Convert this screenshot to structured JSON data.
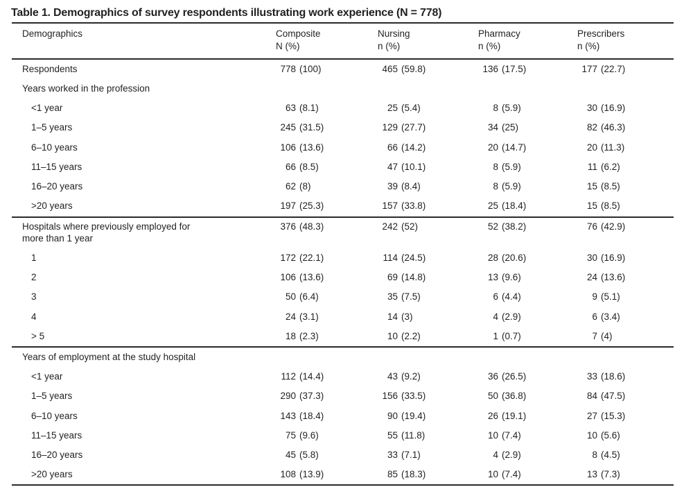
{
  "title": "Table 1. Demographics of survey respondents illustrating work experience (N = 778)",
  "columns": {
    "label": "Demographics",
    "numeric": [
      {
        "name": "Composite",
        "unit": "N (%)"
      },
      {
        "name": "Nursing",
        "unit": "n (%)"
      },
      {
        "name": "Pharmacy",
        "unit": "n (%)"
      },
      {
        "name": "Prescribers",
        "unit": "n (%)"
      }
    ]
  },
  "sections": [
    {
      "rows": [
        {
          "label": "Respondents",
          "indent": false,
          "values": [
            [
              "778",
              "(100)"
            ],
            [
              "465",
              "(59.8)"
            ],
            [
              "136",
              "(17.5)"
            ],
            [
              "177",
              "(22.7)"
            ]
          ]
        },
        {
          "label": "Years worked in the profession",
          "indent": false,
          "values": []
        },
        {
          "label": "<1 year",
          "indent": true,
          "values": [
            [
              "63",
              "(8.1)"
            ],
            [
              "25",
              "(5.4)"
            ],
            [
              "8",
              "(5.9)"
            ],
            [
              "30",
              "(16.9)"
            ]
          ]
        },
        {
          "label": "1–5 years",
          "indent": true,
          "values": [
            [
              "245",
              "(31.5)"
            ],
            [
              "129",
              "(27.7)"
            ],
            [
              "34",
              "(25)"
            ],
            [
              "82",
              "(46.3)"
            ]
          ]
        },
        {
          "label": "6–10 years",
          "indent": true,
          "values": [
            [
              "106",
              "(13.6)"
            ],
            [
              "66",
              "(14.2)"
            ],
            [
              "20",
              "(14.7)"
            ],
            [
              "20",
              "(11.3)"
            ]
          ]
        },
        {
          "label": "11–15 years",
          "indent": true,
          "values": [
            [
              "66",
              "(8.5)"
            ],
            [
              "47",
              "(10.1)"
            ],
            [
              "8",
              "(5.9)"
            ],
            [
              "11",
              "(6.2)"
            ]
          ]
        },
        {
          "label": "16–20 years",
          "indent": true,
          "values": [
            [
              "62",
              "(8)"
            ],
            [
              "39",
              "(8.4)"
            ],
            [
              "8",
              "(5.9)"
            ],
            [
              "15",
              "(8.5)"
            ]
          ]
        },
        {
          "label": ">20 years",
          "indent": true,
          "values": [
            [
              "197",
              "(25.3)"
            ],
            [
              "157",
              "(33.8)"
            ],
            [
              "25",
              "(18.4)"
            ],
            [
              "15",
              "(8.5)"
            ]
          ]
        }
      ]
    },
    {
      "rows": [
        {
          "label": "Hospitals where previously employed for\nmore than 1 year",
          "indent": false,
          "values": [
            [
              "376",
              "(48.3)"
            ],
            [
              "242",
              "(52)"
            ],
            [
              "52",
              "(38.2)"
            ],
            [
              "76",
              "(42.9)"
            ]
          ]
        },
        {
          "label": "1",
          "indent": true,
          "values": [
            [
              "172",
              "(22.1)"
            ],
            [
              "114",
              "(24.5)"
            ],
            [
              "28",
              "(20.6)"
            ],
            [
              "30",
              "(16.9)"
            ]
          ]
        },
        {
          "label": "2",
          "indent": true,
          "values": [
            [
              "106",
              "(13.6)"
            ],
            [
              "69",
              "(14.8)"
            ],
            [
              "13",
              "(9.6)"
            ],
            [
              "24",
              "(13.6)"
            ]
          ]
        },
        {
          "label": "3",
          "indent": true,
          "values": [
            [
              "50",
              "(6.4)"
            ],
            [
              "35",
              "(7.5)"
            ],
            [
              "6",
              "(4.4)"
            ],
            [
              "9",
              "(5.1)"
            ]
          ]
        },
        {
          "label": "4",
          "indent": true,
          "values": [
            [
              "24",
              "(3.1)"
            ],
            [
              "14",
              "(3)"
            ],
            [
              "4",
              "(2.9)"
            ],
            [
              "6",
              "(3.4)"
            ]
          ]
        },
        {
          "label": "> 5",
          "indent": true,
          "values": [
            [
              "18",
              "(2.3)"
            ],
            [
              "10",
              "(2.2)"
            ],
            [
              "1",
              "(0.7)"
            ],
            [
              "7",
              "(4)"
            ]
          ]
        }
      ]
    },
    {
      "rows": [
        {
          "label": "Years of employment at the study hospital",
          "indent": false,
          "values": []
        },
        {
          "label": "<1 year",
          "indent": true,
          "values": [
            [
              "112",
              "(14.4)"
            ],
            [
              "43",
              "(9.2)"
            ],
            [
              "36",
              "(26.5)"
            ],
            [
              "33",
              "(18.6)"
            ]
          ]
        },
        {
          "label": "1–5 years",
          "indent": true,
          "values": [
            [
              "290",
              "(37.3)"
            ],
            [
              "156",
              "(33.5)"
            ],
            [
              "50",
              "(36.8)"
            ],
            [
              "84",
              "(47.5)"
            ]
          ]
        },
        {
          "label": "6–10 years",
          "indent": true,
          "values": [
            [
              "143",
              "(18.4)"
            ],
            [
              "90",
              "(19.4)"
            ],
            [
              "26",
              "(19.1)"
            ],
            [
              "27",
              "(15.3)"
            ]
          ]
        },
        {
          "label": "11–15 years",
          "indent": true,
          "values": [
            [
              "75",
              "(9.6)"
            ],
            [
              "55",
              "(11.8)"
            ],
            [
              "10",
              "(7.4)"
            ],
            [
              "10",
              "(5.6)"
            ]
          ]
        },
        {
          "label": "16–20 years",
          "indent": true,
          "values": [
            [
              "45",
              "(5.8)"
            ],
            [
              "33",
              "(7.1)"
            ],
            [
              "4",
              "(2.9)"
            ],
            [
              "8",
              "(4.5)"
            ]
          ]
        },
        {
          "label": ">20 years",
          "indent": true,
          "values": [
            [
              "108",
              "(13.9)"
            ],
            [
              "85",
              "(18.3)"
            ],
            [
              "10",
              "(7.4)"
            ],
            [
              "13",
              "(7.3)"
            ]
          ]
        }
      ]
    }
  ]
}
